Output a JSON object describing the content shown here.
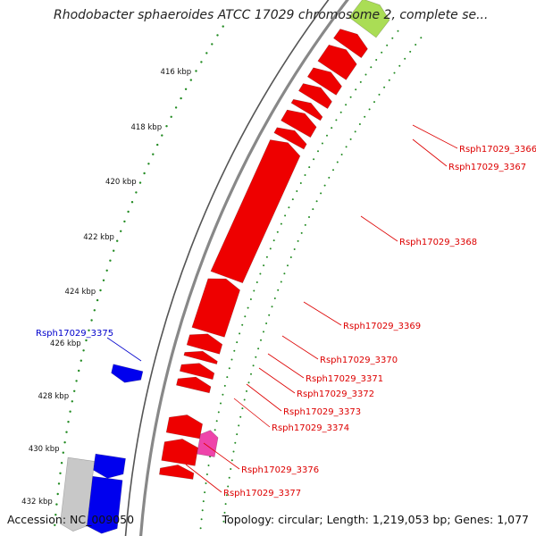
{
  "title": "Rhodobacter sphaeroides ATCC 17029 chromosome 2, complete se...",
  "accession": "Accession: NC_009050",
  "topology": "Topology: circular; Length: 1,219,053 bp; Genes: 1,077",
  "colors": {
    "forward_gene": "#ee0000",
    "reverse_gene": "#0000ee",
    "pseudo_gene": "#ee44aa",
    "grey_feature": "#c8c8c8",
    "tick_dots": "#228b22",
    "backbone": "#808080",
    "label_red": "#dd0000",
    "label_blue": "#0000cc"
  },
  "scale_labels": [
    "416 kbp",
    "418 kbp",
    "420 kbp",
    "422 kbp",
    "424 kbp",
    "426 kbp",
    "428 kbp",
    "430 kbp",
    "432 kbp"
  ],
  "forward_gene_labels": [
    "Rsph17029_3366",
    "Rsph17029_3367",
    "Rsph17029_3368",
    "Rsph17029_3369",
    "Rsph17029_3370",
    "Rsph17029_3371",
    "Rsph17029_3372",
    "Rsph17029_3373",
    "Rsph17029_3374",
    "Rsph17029_3376",
    "Rsph17029_3377"
  ],
  "reverse_gene_labels": [
    "Rsph17029_3375"
  ]
}
